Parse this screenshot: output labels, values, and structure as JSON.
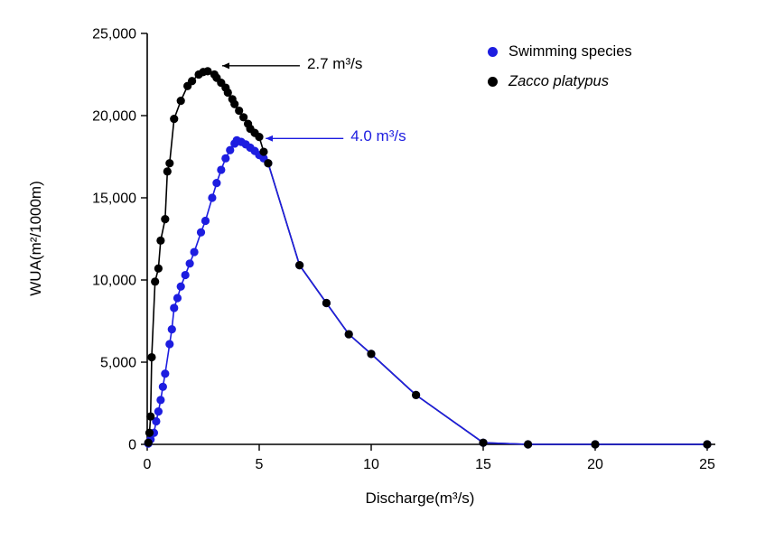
{
  "page": {
    "background": "#ffffff"
  },
  "chart_data": {
    "type": "line-scatter",
    "title": "",
    "xlabel": "Discharge(m³/s)",
    "ylabel": "WUA(m²/1000m)",
    "xlim": [
      0,
      25
    ],
    "ylim": [
      0,
      25000
    ],
    "xticks": [
      0,
      5,
      10,
      15,
      20,
      25
    ],
    "yticks": [
      0,
      5000,
      10000,
      15000,
      20000,
      25000
    ],
    "grid": false,
    "legend_position": "top-right-inside",
    "series": [
      {
        "name": "Swimming species",
        "color": "#1d1de0",
        "marker": "circle",
        "italic": false,
        "points": [
          [
            0.05,
            50
          ],
          [
            0.15,
            300
          ],
          [
            0.3,
            700
          ],
          [
            0.4,
            1400
          ],
          [
            0.5,
            2000
          ],
          [
            0.6,
            2700
          ],
          [
            0.7,
            3500
          ],
          [
            0.8,
            4300
          ],
          [
            1.0,
            6100
          ],
          [
            1.1,
            7000
          ],
          [
            1.2,
            8300
          ],
          [
            1.35,
            8900
          ],
          [
            1.5,
            9600
          ],
          [
            1.7,
            10300
          ],
          [
            1.9,
            11000
          ],
          [
            2.1,
            11700
          ],
          [
            2.4,
            12900
          ],
          [
            2.6,
            13600
          ],
          [
            2.9,
            15000
          ],
          [
            3.1,
            15900
          ],
          [
            3.3,
            16700
          ],
          [
            3.5,
            17400
          ],
          [
            3.7,
            17900
          ],
          [
            3.9,
            18300
          ],
          [
            4.0,
            18500
          ],
          [
            4.2,
            18400
          ],
          [
            4.4,
            18250
          ],
          [
            4.6,
            18050
          ],
          [
            4.8,
            17850
          ],
          [
            5.0,
            17600
          ],
          [
            5.2,
            17400
          ],
          [
            5.4,
            17100
          ],
          [
            6.8,
            10900
          ],
          [
            8,
            8600
          ],
          [
            9,
            6700
          ],
          [
            10,
            5500
          ],
          [
            12,
            3000
          ],
          [
            15,
            100
          ],
          [
            17,
            0
          ],
          [
            20,
            0
          ],
          [
            25,
            0
          ]
        ]
      },
      {
        "name": "Zacco platypus",
        "color": "#000000",
        "marker": "circle",
        "italic": true,
        "points": [
          [
            0.05,
            100
          ],
          [
            0.1,
            700
          ],
          [
            0.15,
            1700
          ],
          [
            0.2,
            5300
          ],
          [
            0.35,
            9900
          ],
          [
            0.5,
            10700
          ],
          [
            0.6,
            12400
          ],
          [
            0.8,
            13700
          ],
          [
            0.9,
            16600
          ],
          [
            1.0,
            17100
          ],
          [
            1.2,
            19800
          ],
          [
            1.5,
            20900
          ],
          [
            1.8,
            21800
          ],
          [
            2.0,
            22100
          ],
          [
            2.3,
            22500
          ],
          [
            2.5,
            22650
          ],
          [
            2.7,
            22700
          ],
          [
            3.0,
            22500
          ],
          [
            3.1,
            22300
          ],
          [
            3.3,
            22000
          ],
          [
            3.5,
            21700
          ],
          [
            3.6,
            21400
          ],
          [
            3.8,
            21000
          ],
          [
            3.9,
            20700
          ],
          [
            4.1,
            20300
          ],
          [
            4.3,
            19900
          ],
          [
            4.5,
            19500
          ],
          [
            4.6,
            19200
          ],
          [
            4.8,
            18950
          ],
          [
            5.0,
            18700
          ],
          [
            5.2,
            17800
          ],
          [
            5.4,
            17100
          ],
          [
            6.8,
            10900
          ],
          [
            8,
            8600
          ],
          [
            9,
            6700
          ],
          [
            10,
            5500
          ],
          [
            12,
            3000
          ],
          [
            15,
            100
          ],
          [
            17,
            0
          ],
          [
            20,
            0
          ],
          [
            25,
            0
          ]
        ]
      }
    ],
    "annotations": [
      {
        "text": "2.7 m³/s",
        "color": "#000000",
        "x": 2.7,
        "y": 22700
      },
      {
        "text": "4.0 m³/s",
        "color": "#1d1de0",
        "x": 4.0,
        "y": 18500
      }
    ]
  }
}
